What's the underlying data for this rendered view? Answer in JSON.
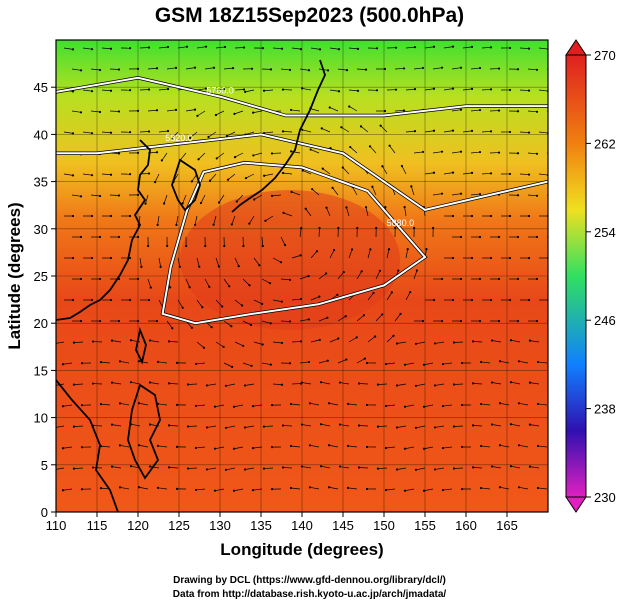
{
  "title": "GSM 18Z15Sep2023 (500.0hPa)",
  "xlabel": "Longitude (degrees)",
  "ylabel": "Latitude  (degrees)",
  "credits": {
    "line1": "Drawing by DCL (https://www.gfd-dennou.org/library/dcl/)",
    "line2": "Data from http://database.rish.kyoto-u.ac.jp/arch/jmadata/"
  },
  "chart_data": {
    "type": "heatmap",
    "title": "GSM 18Z15Sep2023 (500.0hPa)",
    "xlabel": "Longitude (degrees)",
    "ylabel": "Latitude  (degrees)",
    "xlim": [
      110,
      170
    ],
    "ylim": [
      0,
      50
    ],
    "x_ticks": [
      110,
      115,
      120,
      125,
      130,
      135,
      140,
      145,
      150,
      155,
      160,
      165
    ],
    "y_ticks": [
      0,
      5,
      10,
      15,
      20,
      25,
      30,
      35,
      40,
      45
    ],
    "colorbar": {
      "min": 230,
      "max": 270,
      "ticks": [
        230,
        238,
        246,
        254,
        262,
        270
      ],
      "colors": [
        "#e020c0",
        "#3010b0",
        "#1080ff",
        "#30e060",
        "#f0e020",
        "#f08010",
        "#e02020"
      ]
    },
    "contour_labels": [
      "5880.0",
      "5820.0",
      "5760.0"
    ],
    "contours": [
      {
        "label": "5880.0",
        "points": [
          [
            128,
            36
          ],
          [
            133,
            37
          ],
          [
            140,
            36.5
          ],
          [
            148,
            34
          ],
          [
            152,
            30
          ],
          [
            155,
            27
          ],
          [
            150,
            24
          ],
          [
            142,
            22
          ],
          [
            134,
            21
          ],
          [
            127,
            20
          ],
          [
            123,
            21
          ],
          [
            124,
            26
          ],
          [
            126,
            32
          ]
        ]
      },
      {
        "label": "5820.0",
        "points": [
          [
            110,
            38
          ],
          [
            115,
            38
          ],
          [
            125,
            39
          ],
          [
            135,
            40
          ],
          [
            145,
            38
          ],
          [
            155,
            32
          ],
          [
            165,
            34
          ],
          [
            170,
            35
          ]
        ]
      },
      {
        "label": "5760.0",
        "points": [
          [
            110,
            44.5
          ],
          [
            120,
            46
          ],
          [
            130,
            44
          ],
          [
            138,
            42
          ],
          [
            150,
            42
          ],
          [
            160,
            43
          ],
          [
            170,
            43
          ]
        ]
      }
    ]
  }
}
